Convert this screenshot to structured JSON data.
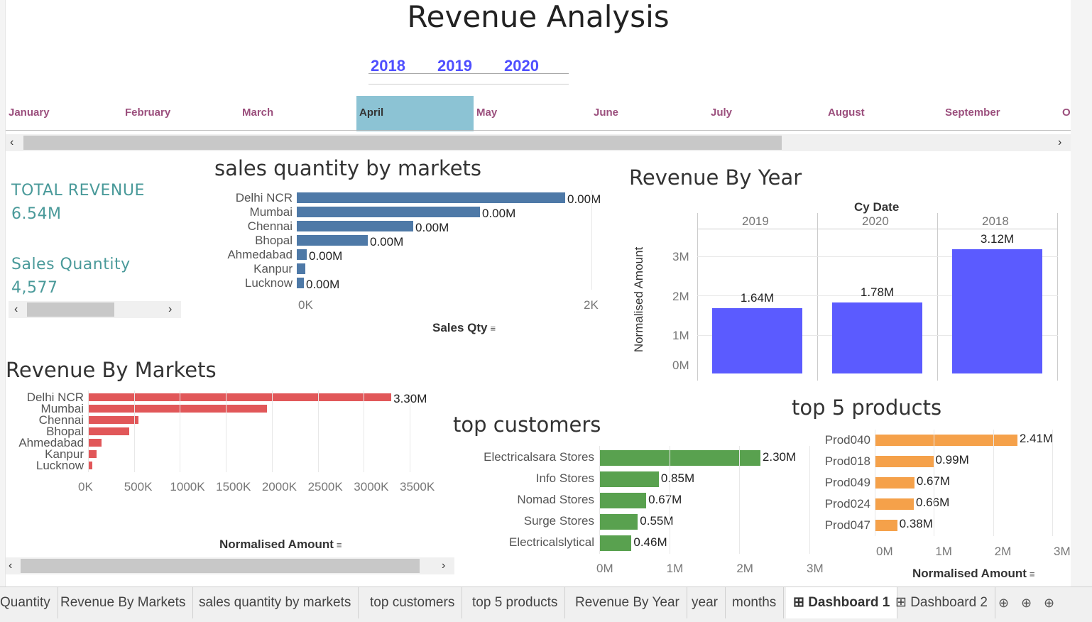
{
  "dashboard_title": "Revenue Analysis",
  "years": [
    "2018",
    "2019",
    "2020"
  ],
  "months": [
    "January",
    "February",
    "March",
    "April",
    "May",
    "June",
    "July",
    "August",
    "September",
    "O"
  ],
  "selected_month": "April",
  "kpis": {
    "total_revenue_label": "TOTAL REVENUE",
    "total_revenue_value": "6.54M",
    "sales_qty_label": "Sales  Quantity",
    "sales_qty_value": "4,577"
  },
  "sales_qty_chart": {
    "title": "sales quantity by markets",
    "xlabel": "Sales Qty",
    "ticks": [
      "0K",
      "2K"
    ],
    "color": "#4e79a7",
    "chart_data": {
      "type": "bar",
      "categories": [
        "Delhi NCR",
        "Mumbai",
        "Chennai",
        "Bhopal",
        "Ahmedabad",
        "Kanpur",
        "Lucknow"
      ],
      "values": [
        1890,
        1290,
        820,
        500,
        70,
        60,
        50
      ],
      "labels": [
        "0.00M",
        "0.00M",
        "0.00M",
        "0.00M",
        "0.00M",
        "",
        "0.00M"
      ],
      "xlim": [
        0,
        2000
      ]
    }
  },
  "revenue_by_year": {
    "title": "Revenue By Year",
    "header": "Cy Date",
    "columns": [
      "2019",
      "2020",
      "2018"
    ],
    "ylabel": "Normalised Amount",
    "yticks": [
      "3M",
      "2M",
      "1M",
      "0M"
    ],
    "color": "#5b5bff",
    "chart_data": {
      "type": "bar",
      "categories": [
        "2019",
        "2020",
        "2018"
      ],
      "values": [
        1.64,
        1.78,
        3.12
      ],
      "labels": [
        "1.64M",
        "1.78M",
        "3.12M"
      ],
      "ylim": [
        0,
        3.5
      ]
    }
  },
  "revenue_by_markets": {
    "title": "Revenue By Markets",
    "xlabel": "Normalised Amount",
    "ticks": [
      "0K",
      "500K",
      "1000K",
      "1500K",
      "2000K",
      "2500K",
      "3000K",
      "3500K"
    ],
    "color": "#e15759",
    "chart_data": {
      "type": "bar",
      "categories": [
        "Delhi NCR",
        "Mumbai",
        "Chennai",
        "Bhopal",
        "Ahmedabad",
        "Kanpur",
        "Lucknow"
      ],
      "values": [
        3300,
        1950,
        550,
        450,
        150,
        90,
        45
      ],
      "labels": [
        "3.30M",
        "",
        "",
        "",
        "",
        "",
        ""
      ],
      "xlim": [
        0,
        3500
      ]
    }
  },
  "top_customers": {
    "title": "top customers",
    "ticks": [
      "0M",
      "1M",
      "2M",
      "3M"
    ],
    "color": "#59a14f",
    "chart_data": {
      "type": "bar",
      "categories": [
        "Electricalsara Stores",
        "Info Stores",
        "Nomad Stores",
        "Surge Stores",
        "Electricalslytical"
      ],
      "values": [
        2.3,
        0.85,
        0.67,
        0.55,
        0.46
      ],
      "labels": [
        "2.30M",
        "0.85M",
        "0.67M",
        "0.55M",
        "0.46M"
      ],
      "xlim": [
        0,
        3
      ]
    }
  },
  "top_products": {
    "title": "top 5 products",
    "xlabel": "Normalised Amount",
    "ticks": [
      "0M",
      "1M",
      "2M",
      "3M"
    ],
    "color": "#f5a14a",
    "chart_data": {
      "type": "bar",
      "categories": [
        "Prod040",
        "Prod018",
        "Prod049",
        "Prod024",
        "Prod047"
      ],
      "values": [
        2.41,
        0.99,
        0.67,
        0.66,
        0.38
      ],
      "labels": [
        "2.41M",
        "0.99M",
        "0.67M",
        "0.66M",
        "0.38M"
      ],
      "xlim": [
        0,
        3
      ]
    }
  },
  "sheet_tabs": [
    "Quantity",
    "Revenue By Markets",
    "sales quantity by markets",
    "top customers",
    "top 5 products",
    "Revenue By Year",
    "year",
    "months",
    "Dashboard 1",
    "Dashboard 2"
  ],
  "active_tab": "Dashboard 1",
  "tab_icons": [
    "new-worksheet-icon",
    "new-dashboard-icon",
    "new-story-icon"
  ]
}
